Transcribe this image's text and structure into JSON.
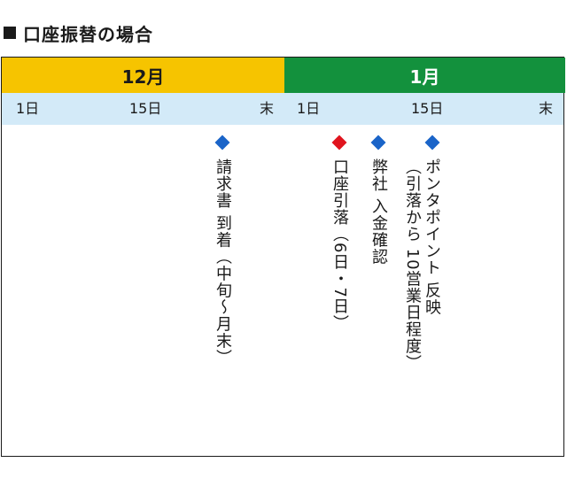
{
  "title": "口座振替の場合",
  "months": {
    "dec": "12月",
    "jan": "1月"
  },
  "days": {
    "dec_start": "1日",
    "dec_mid": "15日",
    "dec_end": "末",
    "jan_start": "1日",
    "jan_mid": "15日",
    "jan_end": "末"
  },
  "events": {
    "invoice": "請求書 到着（中旬〜月末）",
    "debit": "口座引落（6日・7日）",
    "receipt": "弊社 入金確認",
    "points_line1": "ポンタポイント 反映",
    "points_line2": "（引落から 10営業日程度）"
  },
  "colors": {
    "dec_header": "#f6c400",
    "jan_header": "#13913d",
    "day_bar": "#d3eaf8",
    "marker_blue": "#1a64c8",
    "marker_red": "#e0141e"
  }
}
